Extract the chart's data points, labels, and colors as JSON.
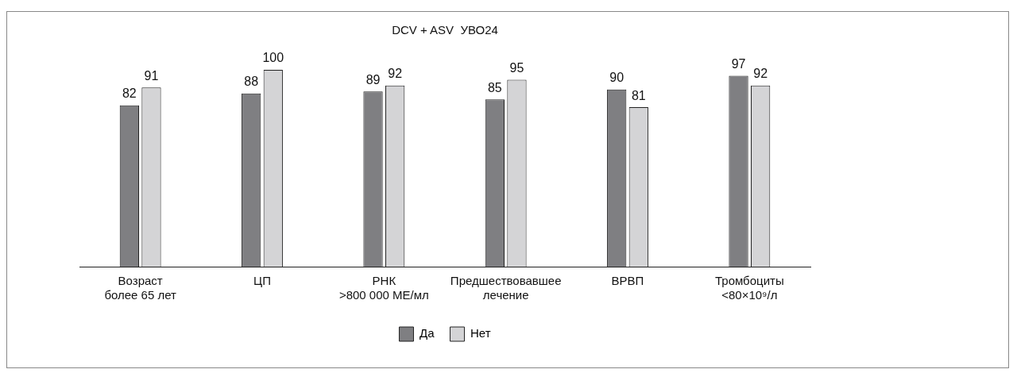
{
  "chart_data": {
    "type": "bar",
    "title": "DCV + ASV  УВО24",
    "categories": [
      "Возраст\nболее 65 лет",
      "ЦП",
      "РНК\n>800 000 МЕ/мл",
      "Предшествовавшее\nлечение",
      "ВРВП",
      "Тромбоциты\n<80×10⁹/л"
    ],
    "series": [
      {
        "name": "Да",
        "color": "#7f7f82",
        "values": [
          82,
          88,
          89,
          85,
          90,
          97
        ]
      },
      {
        "name": "Нет",
        "color": "#d4d4d6",
        "values": [
          91,
          100,
          92,
          95,
          81,
          92
        ]
      }
    ],
    "ylim": [
      0,
      100
    ],
    "data_labels": true,
    "legend": "bottom",
    "grid": false,
    "tick_labels": "x"
  }
}
